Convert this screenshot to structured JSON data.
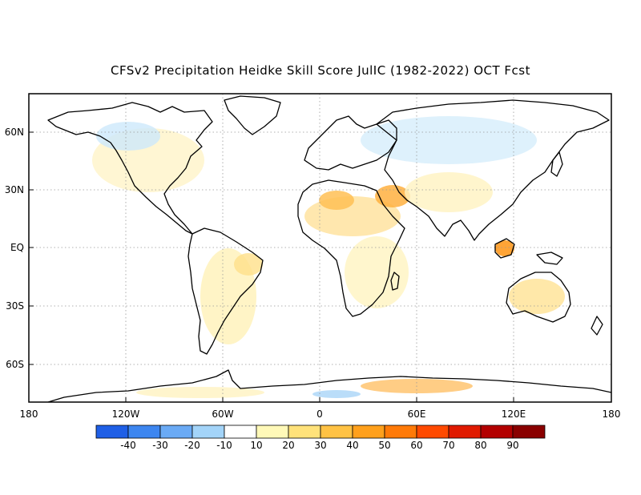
{
  "title": "CFSv2 Precipitation Heidke Skill Score JulIC (1982-2022) OCT Fcst",
  "map": {
    "projection": "equirectangular",
    "lon_range": [
      -180,
      180
    ],
    "lat_range": [
      -80,
      80
    ],
    "x_ticks": [
      "180",
      "120W",
      "60W",
      "0",
      "60E",
      "120E",
      "180"
    ],
    "y_ticks": [
      "60N",
      "30N",
      "EQ",
      "30S",
      "60S"
    ],
    "gridlines": "dotted",
    "background_color": "#ffffff",
    "coastline_color": "#000000"
  },
  "colorbar": {
    "labels": [
      "-40",
      "-30",
      "-20",
      "-10",
      "10",
      "20",
      "30",
      "40",
      "50",
      "60",
      "70",
      "80",
      "90"
    ],
    "colors": [
      "#1f5fe6",
      "#3d86f0",
      "#6aaaf5",
      "#a3d4f9",
      "#ffffff",
      "#fff9b8",
      "#ffe27a",
      "#ffc244",
      "#ffa01c",
      "#ff7a08",
      "#ff4a00",
      "#e01a00",
      "#b30000",
      "#8a0000"
    ]
  },
  "skill_patches": [
    {
      "region": "Northern Africa",
      "level": 30
    },
    {
      "region": "Arabian Peninsula",
      "level": 40
    },
    {
      "region": "Borneo",
      "level": 50
    },
    {
      "region": "Central Australia",
      "level": 20
    },
    {
      "region": "East Antarctica",
      "level": 30
    },
    {
      "region": "Northeast Brazil",
      "level": 20
    },
    {
      "region": "Central Siberia",
      "level": -20
    },
    {
      "region": "Canada",
      "level": -10
    }
  ]
}
